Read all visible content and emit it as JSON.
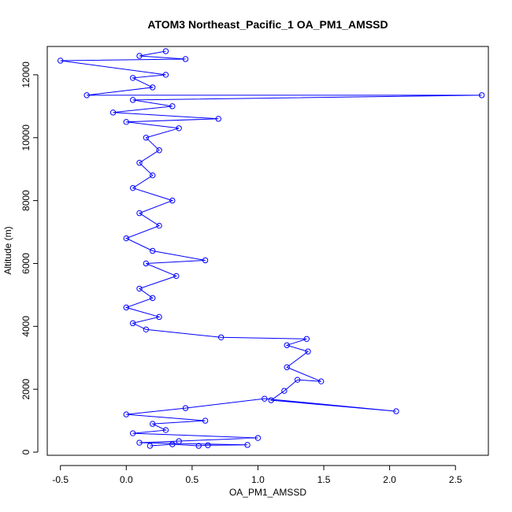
{
  "chart_data": {
    "type": "line",
    "title": "ATOM3 Northeast_Pacific_1 OA_PM1_AMSSD",
    "xlabel": "OA_PM1_AMSSD",
    "ylabel": "Altitude (m)",
    "xlim": [
      -0.6,
      2.75
    ],
    "ylim": [
      -100,
      12900
    ],
    "x_ticks": [
      -0.5,
      0.0,
      0.5,
      1.0,
      1.5,
      2.0,
      2.5
    ],
    "x_tick_labels": [
      "-0.5",
      "0.0",
      "0.5",
      "1.0",
      "1.5",
      "2.0",
      "2.5"
    ],
    "y_ticks": [
      0,
      2000,
      4000,
      6000,
      8000,
      10000,
      12000
    ],
    "y_tick_labels": [
      "0",
      "2000",
      "4000",
      "6000",
      "8000",
      "10000",
      "12000"
    ],
    "grid": false,
    "legend": "none",
    "colors": {
      "series": "#0000ff",
      "axes": "#000000",
      "background": "#ffffff"
    },
    "markers": "open-circle",
    "series": [
      {
        "points": [
          [
            0.18,
            200
          ],
          [
            0.35,
            250
          ],
          [
            0.55,
            200
          ],
          [
            0.62,
            220
          ],
          [
            0.92,
            230
          ],
          [
            0.1,
            300
          ],
          [
            0.4,
            350
          ],
          [
            1.0,
            450
          ],
          [
            0.05,
            600
          ],
          [
            0.3,
            700
          ],
          [
            0.2,
            900
          ],
          [
            0.6,
            1000
          ],
          [
            0.0,
            1200
          ],
          [
            0.45,
            1400
          ],
          [
            1.05,
            1700
          ],
          [
            2.05,
            1300
          ],
          [
            1.1,
            1650
          ],
          [
            1.2,
            1950
          ],
          [
            1.3,
            2300
          ],
          [
            1.48,
            2250
          ],
          [
            1.22,
            2700
          ],
          [
            1.38,
            3200
          ],
          [
            1.22,
            3400
          ],
          [
            1.37,
            3600
          ],
          [
            0.72,
            3650
          ],
          [
            0.15,
            3900
          ],
          [
            0.05,
            4100
          ],
          [
            0.25,
            4300
          ],
          [
            0.0,
            4600
          ],
          [
            0.2,
            4900
          ],
          [
            0.1,
            5200
          ],
          [
            0.38,
            5600
          ],
          [
            0.15,
            6000
          ],
          [
            0.6,
            6100
          ],
          [
            0.2,
            6400
          ],
          [
            0.0,
            6800
          ],
          [
            0.25,
            7200
          ],
          [
            0.1,
            7600
          ],
          [
            0.35,
            8000
          ],
          [
            0.05,
            8400
          ],
          [
            0.2,
            8800
          ],
          [
            0.1,
            9200
          ],
          [
            0.25,
            9600
          ],
          [
            0.15,
            10000
          ],
          [
            0.4,
            10300
          ],
          [
            0.0,
            10500
          ],
          [
            0.7,
            10600
          ],
          [
            -0.1,
            10800
          ],
          [
            0.35,
            11000
          ],
          [
            0.05,
            11200
          ],
          [
            2.7,
            11350
          ],
          [
            -0.3,
            11350
          ],
          [
            0.2,
            11600
          ],
          [
            0.05,
            11900
          ],
          [
            0.3,
            12000
          ],
          [
            -0.5,
            12450
          ],
          [
            0.45,
            12500
          ],
          [
            0.1,
            12600
          ],
          [
            0.3,
            12750
          ]
        ]
      }
    ]
  }
}
